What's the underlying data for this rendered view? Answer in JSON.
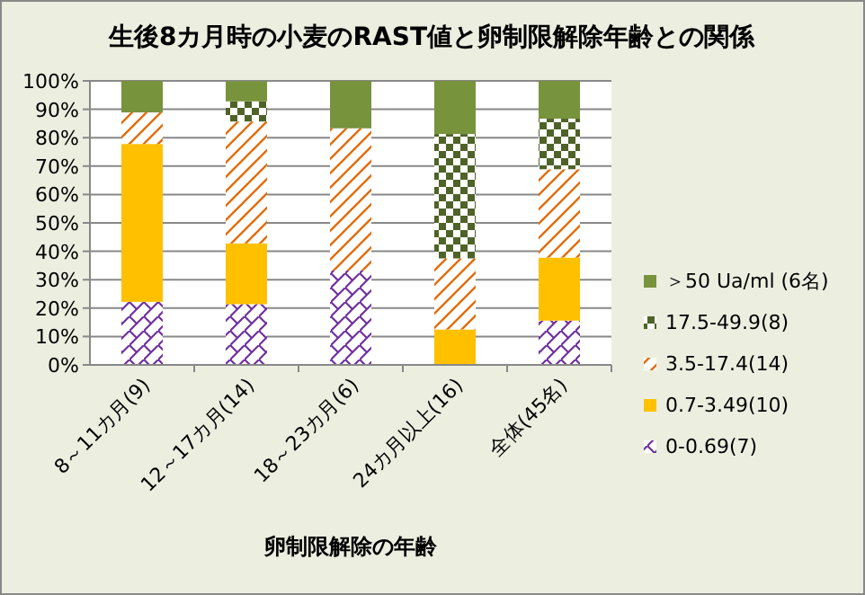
{
  "chart_data": {
    "type": "bar",
    "stacked": true,
    "title": "生後8カ月時の小麦のRAST値と卵制限解除年齢との関係",
    "xlabel": "卵制限解除の年齢",
    "categories": [
      "8～11カ月(9)",
      "12～17カ月(14)",
      "18～23カ月(6)",
      "24カ月以上(16)",
      "全体(45名)"
    ],
    "series": [
      {
        "name": "0-0.69(7)",
        "color": "#7030a0",
        "values": [
          22.2,
          21.4,
          33.3,
          0,
          15.6
        ]
      },
      {
        "name": "0.7-3.49(10)",
        "color": "#ffc000",
        "values": [
          55.6,
          21.4,
          0,
          12.5,
          22.2
        ]
      },
      {
        "name": "3.5-17.4(14)",
        "color": "#e46c0a",
        "values": [
          11.1,
          42.9,
          50,
          25,
          31.1
        ]
      },
      {
        "name": "17.5-49.9(8)",
        "color": "#4f6228",
        "values": [
          0,
          7.1,
          0,
          43.8,
          17.8
        ]
      },
      {
        "name": "＞50 Ua/ml (6名)",
        "color": "#77933c",
        "values": [
          11.1,
          7.1,
          16.7,
          18.7,
          13.3
        ]
      }
    ],
    "ylim": [
      0,
      100
    ],
    "yticks": [
      {
        "value": 0,
        "label": "0%"
      },
      {
        "value": 10,
        "label": "10%"
      },
      {
        "value": 20,
        "label": "20%"
      },
      {
        "value": 30,
        "label": "30%"
      },
      {
        "value": 40,
        "label": "40%"
      },
      {
        "value": 50,
        "label": "50%"
      },
      {
        "value": 60,
        "label": "60%"
      },
      {
        "value": 70,
        "label": "70%"
      },
      {
        "value": 80,
        "label": "80%"
      },
      {
        "value": 90,
        "label": "90%"
      },
      {
        "value": 100,
        "label": "100%"
      }
    ],
    "grid": "y",
    "legend": "right"
  }
}
